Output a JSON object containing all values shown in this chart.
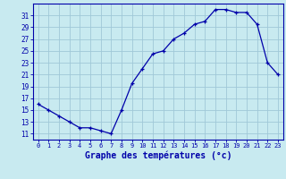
{
  "hours": [
    0,
    1,
    2,
    3,
    4,
    5,
    6,
    7,
    8,
    9,
    10,
    11,
    12,
    13,
    14,
    15,
    16,
    17,
    18,
    19,
    20,
    21,
    22,
    23
  ],
  "temps": [
    16,
    15,
    14,
    13,
    12,
    12,
    11.5,
    11,
    15,
    19.5,
    22,
    24.5,
    25,
    27,
    28,
    29.5,
    30,
    32,
    32,
    31.5,
    31.5,
    29.5,
    23,
    21
  ],
  "ylabel_ticks": [
    11,
    13,
    15,
    17,
    19,
    21,
    23,
    25,
    27,
    29,
    31
  ],
  "xlabel": "Graphe des températures (°c)",
  "ylim": [
    10.0,
    33.0
  ],
  "xlim": [
    -0.5,
    23.5
  ],
  "bg_color": "#c8eaf0",
  "grid_color": "#a0c8d8",
  "line_color": "#0000aa",
  "marker_color": "#0000aa",
  "xlabel_color": "#0000aa",
  "tick_color": "#0000aa",
  "axis_color": "#0000aa"
}
